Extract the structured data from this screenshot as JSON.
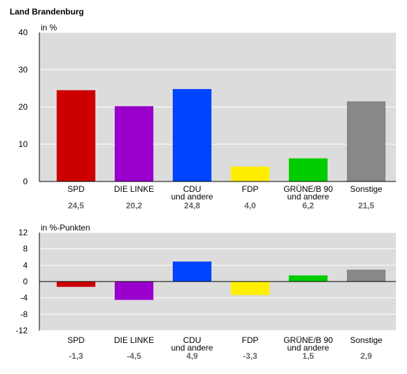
{
  "title": "Land Brandenburg",
  "chart_data": [
    {
      "type": "bar",
      "unit_label": "in %",
      "ylim": [
        0,
        40
      ],
      "yticks": [
        0,
        10,
        20,
        30,
        40
      ],
      "grid": true,
      "categories": [
        [
          "SPD"
        ],
        [
          "DIE LINKE"
        ],
        [
          "CDU",
          "und andere"
        ],
        [
          "FDP"
        ],
        [
          "GRÜNE/B 90",
          "und andere"
        ],
        [
          "Sonstige"
        ]
      ],
      "values": [
        24.5,
        20.2,
        24.8,
        4.0,
        6.2,
        21.5
      ],
      "value_labels": [
        "24,5",
        "20,2",
        "24,8",
        "4,0",
        "6,2",
        "21,5"
      ],
      "colors": [
        "#cc0000",
        "#9900cc",
        "#0044ff",
        "#ffee00",
        "#00cc00",
        "#888888"
      ]
    },
    {
      "type": "bar",
      "unit_label": "in %-Punkten",
      "ylim": [
        -12,
        12
      ],
      "yticks": [
        12,
        8,
        4,
        0,
        -4,
        -8,
        -12
      ],
      "grid": true,
      "categories": [
        [
          "SPD"
        ],
        [
          "DIE LINKE"
        ],
        [
          "CDU",
          "und andere"
        ],
        [
          "FDP"
        ],
        [
          "GRÜNE/B 90",
          "und andere"
        ],
        [
          "Sonstige"
        ]
      ],
      "values": [
        -1.3,
        -4.5,
        4.9,
        -3.3,
        1.5,
        2.9
      ],
      "value_labels": [
        "-1,3",
        "-4,5",
        "4,9",
        "-3,3",
        "1,5",
        "2,9"
      ],
      "colors": [
        "#cc0000",
        "#9900cc",
        "#0044ff",
        "#ffee00",
        "#00cc00",
        "#888888"
      ]
    }
  ]
}
